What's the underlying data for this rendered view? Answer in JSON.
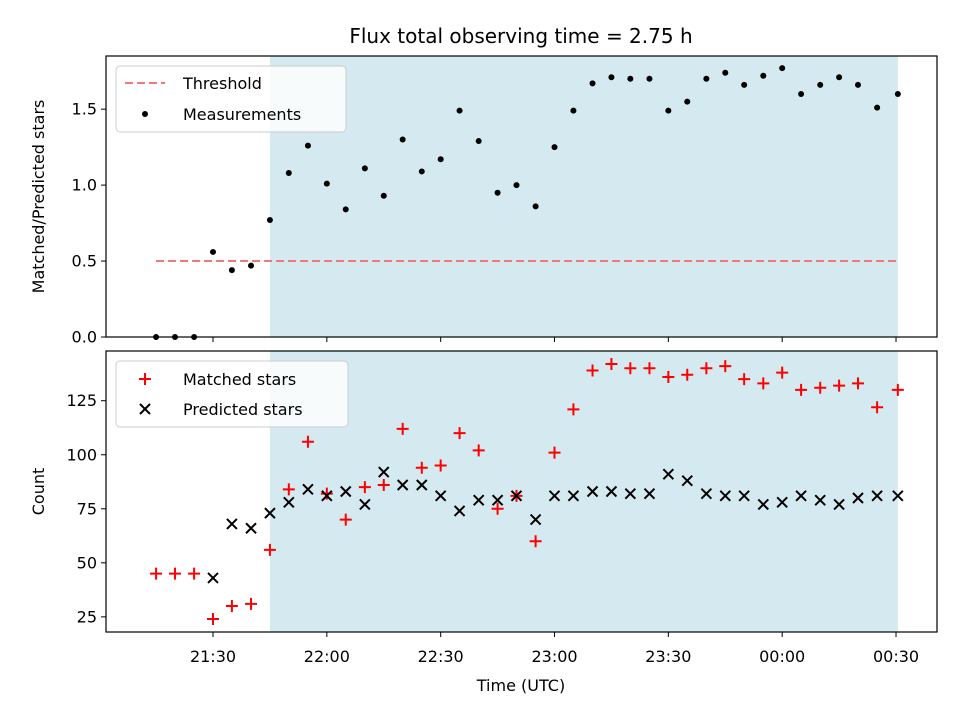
{
  "chart_data": {
    "title": "Flux total observing time = 2.75 h",
    "xlabel": "Time (UTC)",
    "x_tick_labels": [
      "21:30",
      "22:00",
      "22:30",
      "23:00",
      "23:30",
      "00:00",
      "00:30"
    ],
    "x_tick_hours": [
      21.5,
      22.0,
      22.5,
      23.0,
      23.5,
      24.0,
      24.5
    ],
    "xlim_hours": [
      21.03,
      24.68
    ],
    "shaded_span_hours": [
      21.75,
      24.508
    ],
    "shade_color": "#d4eaf0",
    "panels": [
      {
        "type": "scatter",
        "ylabel": "Matched/Predicted stars",
        "ylim": [
          0,
          1.85
        ],
        "y_ticks": [
          0.0,
          0.5,
          1.0,
          1.5
        ],
        "y_tick_labels": [
          "0.0",
          "0.5",
          "1.0",
          "1.5"
        ],
        "legend_position": "top-left",
        "series": [
          {
            "name": "Threshold",
            "kind": "dashed-line",
            "color": "#f07878",
            "x": [
              21.25,
              24.508
            ],
            "y": [
              0.5,
              0.5
            ]
          },
          {
            "name": "Measurements",
            "kind": "dot",
            "color": "#000000",
            "x": [
              21.25,
              21.333,
              21.417,
              21.5,
              21.583,
              21.667,
              21.75,
              21.833,
              21.917,
              22.0,
              22.083,
              22.167,
              22.25,
              22.333,
              22.417,
              22.5,
              22.583,
              22.667,
              22.75,
              22.833,
              22.917,
              23.0,
              23.083,
              23.167,
              23.25,
              23.333,
              23.417,
              23.5,
              23.583,
              23.667,
              23.75,
              23.833,
              23.917,
              24.0,
              24.083,
              24.167,
              24.25,
              24.333,
              24.417,
              24.508
            ],
            "y": [
              0.0,
              0.0,
              0.0,
              0.56,
              0.44,
              0.47,
              0.77,
              1.08,
              1.26,
              1.01,
              0.84,
              1.11,
              0.93,
              1.3,
              1.09,
              1.17,
              1.49,
              1.29,
              0.95,
              1.0,
              0.86,
              1.25,
              1.49,
              1.67,
              1.71,
              1.7,
              1.7,
              1.49,
              1.55,
              1.7,
              1.74,
              1.66,
              1.72,
              1.77,
              1.6,
              1.66,
              1.71,
              1.66,
              1.51,
              1.6
            ]
          }
        ]
      },
      {
        "type": "scatter",
        "ylabel": "Count",
        "ylim": [
          18,
          148
        ],
        "y_ticks": [
          25,
          50,
          75,
          100,
          125
        ],
        "y_tick_labels": [
          "25",
          "50",
          "75",
          "100",
          "125"
        ],
        "legend_position": "top-left",
        "series": [
          {
            "name": "Matched stars",
            "kind": "plus",
            "color": "#ff0000",
            "x": [
              21.25,
              21.333,
              21.417,
              21.5,
              21.583,
              21.667,
              21.75,
              21.833,
              21.917,
              22.0,
              22.083,
              22.167,
              22.25,
              22.333,
              22.417,
              22.5,
              22.583,
              22.667,
              22.75,
              22.833,
              22.917,
              23.0,
              23.083,
              23.167,
              23.25,
              23.333,
              23.417,
              23.5,
              23.583,
              23.667,
              23.75,
              23.833,
              23.917,
              24.0,
              24.083,
              24.167,
              24.25,
              24.333,
              24.417,
              24.508
            ],
            "y": [
              45,
              45,
              45,
              24,
              30,
              31,
              56,
              84,
              106,
              82,
              70,
              85,
              86,
              112,
              94,
              95,
              110,
              102,
              75,
              81,
              60,
              101,
              121,
              139,
              142,
              140,
              140,
              136,
              137,
              140,
              141,
              135,
              133,
              138,
              130,
              131,
              132,
              133,
              122,
              130
            ]
          },
          {
            "name": "Predicted stars",
            "kind": "x",
            "color": "#000000",
            "x": [
              21.5,
              21.583,
              21.667,
              21.75,
              21.833,
              21.917,
              22.0,
              22.083,
              22.167,
              22.25,
              22.333,
              22.417,
              22.5,
              22.583,
              22.667,
              22.75,
              22.833,
              22.917,
              23.0,
              23.083,
              23.167,
              23.25,
              23.333,
              23.417,
              23.5,
              23.583,
              23.667,
              23.75,
              23.833,
              23.917,
              24.0,
              24.083,
              24.167,
              24.25,
              24.333,
              24.417,
              24.508
            ],
            "y": [
              43,
              68,
              66,
              73,
              78,
              84,
              81,
              83,
              77,
              92,
              86,
              86,
              81,
              74,
              79,
              79,
              81,
              70,
              81,
              81,
              83,
              83,
              82,
              82,
              91,
              88,
              82,
              81,
              81,
              77,
              78,
              81,
              79,
              77,
              80,
              81,
              81
            ]
          }
        ]
      }
    ]
  }
}
